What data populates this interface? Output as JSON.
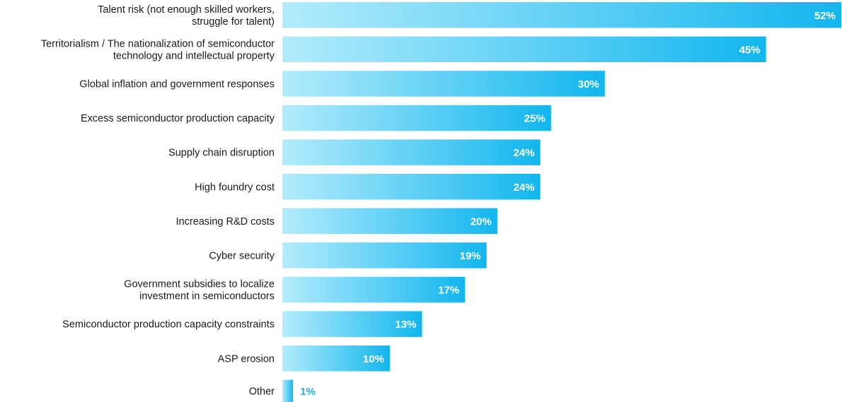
{
  "chart_data": {
    "type": "bar",
    "orientation": "horizontal",
    "title": "",
    "xlabel": "",
    "ylabel": "",
    "categories": [
      [
        "Talent risk (not enough skilled workers,",
        "struggle for talent)"
      ],
      [
        "Territorialism / The nationalization of semiconductor",
        "technology and intellectual property"
      ],
      [
        "Global inflation and government responses"
      ],
      [
        "Excess semiconductor production capacity"
      ],
      [
        "Supply chain disruption"
      ],
      [
        "High foundry cost"
      ],
      [
        "Increasing R&D costs"
      ],
      [
        "Cyber security"
      ],
      [
        "Government subsidies to localize",
        "investment in semiconductors"
      ],
      [
        "Semiconductor production capacity constraints"
      ],
      [
        "ASP erosion"
      ],
      [
        "Other"
      ]
    ],
    "values": [
      52,
      45,
      30,
      25,
      24,
      24,
      20,
      19,
      17,
      13,
      10,
      1
    ],
    "value_labels": [
      "52%",
      "45%",
      "30%",
      "25%",
      "24%",
      "24%",
      "20%",
      "19%",
      "17%",
      "13%",
      "10%",
      "1%"
    ],
    "xlim": [
      0,
      52
    ],
    "grid": false,
    "legend": "none",
    "colors": {
      "bar_start": "#b3ecfc",
      "bar_end": "#12b6ee",
      "label_inside": "#ffffff",
      "label_outside": "#1eaee8",
      "category_text": "#1a1a1a"
    }
  }
}
